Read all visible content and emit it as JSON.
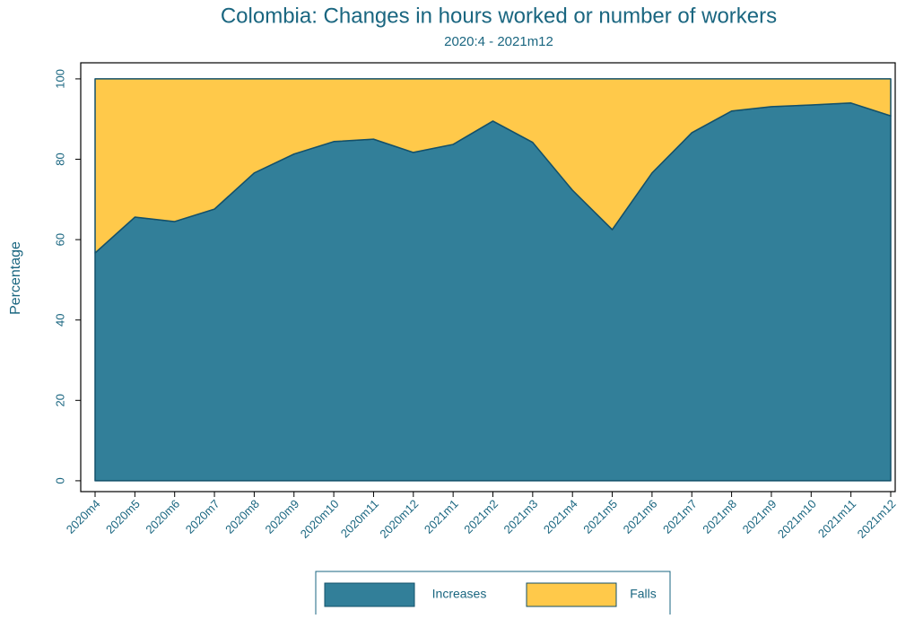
{
  "chart_data": {
    "type": "stacked-area",
    "title": "Colombia: Changes in hours worked or number of workers",
    "subtitle": "2020:4 - 2021m12",
    "y_label": "Percentage",
    "categories": [
      "2020m4",
      "2020m5",
      "2020m6",
      "2020m7",
      "2020m8",
      "2020m9",
      "2020m10",
      "2020m11",
      "2020m12",
      "2021m1",
      "2021m2",
      "2021m3",
      "2021m4",
      "2021m5",
      "2021m6",
      "2021m7",
      "2021m8",
      "2021m9",
      "2021m10",
      "2021m11",
      "2021m12"
    ],
    "series": [
      {
        "name": "Increases",
        "color": "#327f99",
        "values": [
          56.7,
          65.6,
          64.5,
          67.6,
          76.6,
          81.3,
          84.4,
          85.0,
          81.7,
          83.7,
          89.5,
          84.2,
          72.3,
          62.5,
          76.6,
          86.6,
          92.0,
          93.1,
          93.5,
          94.0,
          90.8
        ]
      },
      {
        "name": "Falls",
        "color": "#ffc94a",
        "values": [
          43.3,
          34.4,
          35.5,
          32.4,
          23.4,
          18.7,
          15.6,
          15.0,
          18.3,
          16.3,
          10.5,
          15.8,
          27.7,
          37.5,
          23.4,
          13.4,
          8.0,
          6.9,
          6.5,
          6.0,
          9.2
        ]
      }
    ],
    "ylim": [
      -2.7,
      104
    ],
    "yticks": [
      0,
      20,
      40,
      60,
      80,
      100
    ]
  }
}
